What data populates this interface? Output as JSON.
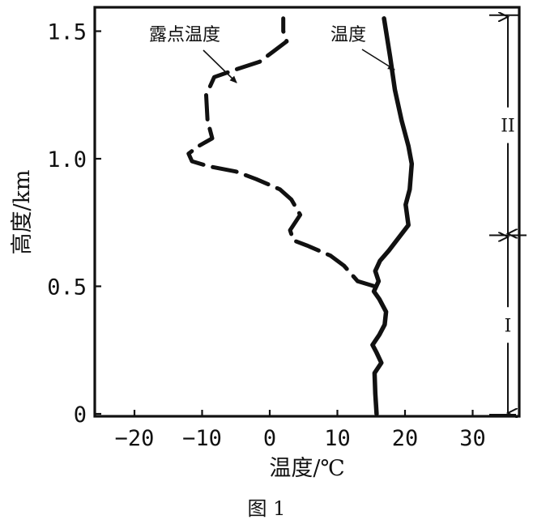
{
  "caption": "图 1",
  "chart_data": {
    "type": "line",
    "title": "",
    "xlabel": "温度/℃",
    "ylabel": "高度/km",
    "xlim": [
      -25,
      33
    ],
    "ylim": [
      0,
      1.6
    ],
    "xticks": [
      -20,
      -10,
      0,
      10,
      20,
      30
    ],
    "yticks": [
      0,
      0.5,
      1.0,
      1.5
    ],
    "xtick_labels": [
      "−20",
      "−10",
      "0",
      "10",
      "20",
      "30"
    ],
    "ytick_labels": [
      "0",
      "0.5",
      "1.0",
      "1.5"
    ],
    "grid": false,
    "series": [
      {
        "name": "温度",
        "style": "solid",
        "points": [
          [
            15.8,
            0.0
          ],
          [
            15.6,
            0.08
          ],
          [
            15.5,
            0.16
          ],
          [
            16.5,
            0.2
          ],
          [
            15.8,
            0.24
          ],
          [
            15.2,
            0.27
          ],
          [
            16.2,
            0.31
          ],
          [
            17.0,
            0.35
          ],
          [
            17.2,
            0.4
          ],
          [
            16.2,
            0.45
          ],
          [
            15.4,
            0.48
          ],
          [
            16.1,
            0.52
          ],
          [
            15.6,
            0.56
          ],
          [
            16.3,
            0.6
          ],
          [
            17.6,
            0.64
          ],
          [
            20.5,
            0.74
          ],
          [
            20.1,
            0.82
          ],
          [
            20.7,
            0.88
          ],
          [
            21.0,
            0.98
          ],
          [
            20.5,
            1.05
          ],
          [
            19.5,
            1.15
          ],
          [
            18.5,
            1.27
          ],
          [
            17.8,
            1.4
          ],
          [
            16.9,
            1.55
          ]
        ]
      },
      {
        "name": "露点温度",
        "style": "dashed",
        "points": [
          [
            15.5,
            0.5
          ],
          [
            13.0,
            0.52
          ],
          [
            11.0,
            0.58
          ],
          [
            9.0,
            0.62
          ],
          [
            5.5,
            0.66
          ],
          [
            3.5,
            0.68
          ],
          [
            3.0,
            0.72
          ],
          [
            4.5,
            0.78
          ],
          [
            3.2,
            0.84
          ],
          [
            1.5,
            0.88
          ],
          [
            -2.0,
            0.92
          ],
          [
            -5.0,
            0.95
          ],
          [
            -9.0,
            0.97
          ],
          [
            -11.5,
            0.99
          ],
          [
            -12.0,
            1.02
          ],
          [
            -10.5,
            1.05
          ],
          [
            -8.5,
            1.08
          ],
          [
            -9.2,
            1.15
          ],
          [
            -9.4,
            1.25
          ],
          [
            -8.2,
            1.32
          ],
          [
            -5.0,
            1.35
          ],
          [
            -1.5,
            1.38
          ],
          [
            0.5,
            1.42
          ],
          [
            2.5,
            1.46
          ],
          [
            2.0,
            1.5
          ],
          [
            2.0,
            1.55
          ]
        ]
      }
    ],
    "annotations": [
      {
        "text": "露点温度",
        "target_series": "露点温度",
        "at": [
          -6.0,
          1.35
        ]
      },
      {
        "text": "温度",
        "target_series": "温度",
        "at": [
          17.0,
          1.35
        ]
      }
    ],
    "layers": [
      {
        "label": "I",
        "from": 0.0,
        "to": 0.7
      },
      {
        "label": "II",
        "from": 0.7,
        "to": 1.55
      }
    ]
  }
}
